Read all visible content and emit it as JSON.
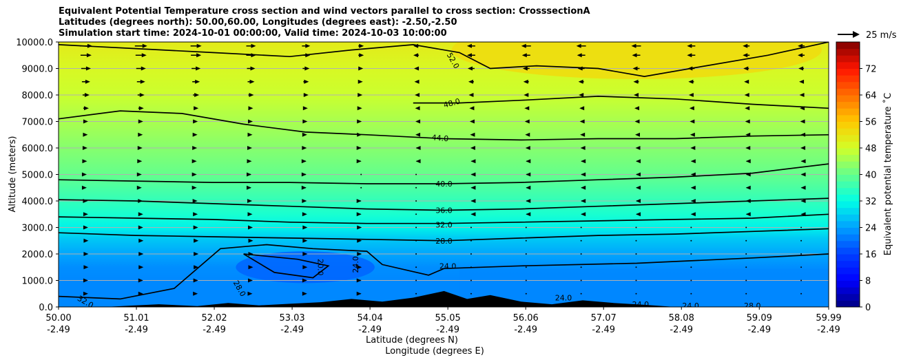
{
  "chart_data": {
    "type": "heatmap",
    "title_lines": [
      "Equivalent Potential Temperature cross section and wind vectors parallel to cross section: CrosssectionA",
      "Latitudes (degrees north): 50.00,60.00, Longitudes (degrees east): -2.50,-2.50",
      "Simulation start time: 2024-10-01 00:00:00, Valid time: 2024-10-03 10:00:00"
    ],
    "xlabel": "Latitude (degrees N)",
    "xlabel2": "Longitude (degrees E)",
    "ylabel": "Altitude (meters)",
    "xlim": [
      50.0,
      59.99
    ],
    "ylim": [
      0,
      10000
    ],
    "x_ticks": [
      {
        "lat": "50.00",
        "lon": "-2.49",
        "value": 50.0
      },
      {
        "lat": "51.01",
        "lon": "-2.49",
        "value": 51.01
      },
      {
        "lat": "52.02",
        "lon": "-2.49",
        "value": 52.02
      },
      {
        "lat": "53.03",
        "lon": "-2.49",
        "value": 53.03
      },
      {
        "lat": "54.04",
        "lon": "-2.49",
        "value": 54.04
      },
      {
        "lat": "55.05",
        "lon": "-2.49",
        "value": 55.05
      },
      {
        "lat": "56.06",
        "lon": "-2.49",
        "value": 56.06
      },
      {
        "lat": "57.07",
        "lon": "-2.49",
        "value": 57.07
      },
      {
        "lat": "58.08",
        "lon": "-2.49",
        "value": 58.08
      },
      {
        "lat": "59.09",
        "lon": "-2.49",
        "value": 59.09
      },
      {
        "lat": "59.99",
        "lon": "-2.49",
        "value": 59.99
      }
    ],
    "y_ticks": [
      {
        "label": "0.0",
        "value": 0
      },
      {
        "label": "1000.0",
        "value": 1000
      },
      {
        "label": "2000.0",
        "value": 2000
      },
      {
        "label": "3000.0",
        "value": 3000
      },
      {
        "label": "4000.0",
        "value": 4000
      },
      {
        "label": "5000.0",
        "value": 5000
      },
      {
        "label": "6000.0",
        "value": 6000
      },
      {
        "label": "7000.0",
        "value": 7000
      },
      {
        "label": "8000.0",
        "value": 8000
      },
      {
        "label": "9000.0",
        "value": 9000
      },
      {
        "label": "10000.0",
        "value": 10000
      }
    ],
    "colorbar": {
      "label": "Equivalent potential temperature ˚C",
      "range": [
        0,
        80
      ],
      "ticks": [
        {
          "label": "0",
          "value": 0
        },
        {
          "label": "8",
          "value": 8
        },
        {
          "label": "16",
          "value": 16
        },
        {
          "label": "24",
          "value": 24
        },
        {
          "label": "32",
          "value": 32
        },
        {
          "label": "40",
          "value": 40
        },
        {
          "label": "48",
          "value": 48
        },
        {
          "label": "56",
          "value": 56
        },
        {
          "label": "64",
          "value": 64
        },
        {
          "label": "72",
          "value": 72
        }
      ]
    },
    "vector_key": "25 m/s",
    "theta_e_levels": [
      {
        "alt": 0,
        "value": 22
      },
      {
        "alt": 1000,
        "value": 22
      },
      {
        "alt": 1500,
        "value": 22.5
      },
      {
        "alt": 2000,
        "value": 24.5
      },
      {
        "alt": 2600,
        "value": 27.5
      },
      {
        "alt": 3000,
        "value": 31
      },
      {
        "alt": 3500,
        "value": 34
      },
      {
        "alt": 4000,
        "value": 36
      },
      {
        "alt": 5000,
        "value": 40
      },
      {
        "alt": 6000,
        "value": 42.5
      },
      {
        "alt": 7000,
        "value": 45
      },
      {
        "alt": 8000,
        "value": 47.5
      },
      {
        "alt": 9000,
        "value": 49
      },
      {
        "alt": 10000,
        "value": 51
      }
    ],
    "contours": [
      {
        "label": "20.0",
        "points": [
          [
            52.4,
            2000
          ],
          [
            53.1,
            1800
          ],
          [
            53.5,
            1550
          ],
          [
            53.3,
            1100
          ],
          [
            52.8,
            1300
          ],
          [
            52.4,
            2000
          ]
        ]
      },
      {
        "label": "24.0",
        "points": [
          [
            50.0,
            400
          ],
          [
            50.8,
            300
          ],
          [
            51.5,
            700
          ],
          [
            52.1,
            2200
          ],
          [
            52.7,
            2350
          ],
          [
            53.3,
            2200
          ],
          [
            54.0,
            2100
          ],
          [
            54.2,
            1600
          ],
          [
            54.8,
            1200
          ],
          [
            55.0,
            1450
          ],
          [
            56.0,
            1550
          ],
          [
            57.5,
            1650
          ],
          [
            59.0,
            1850
          ],
          [
            59.99,
            2000
          ]
        ]
      },
      {
        "label": "28.0",
        "points": [
          [
            50.0,
            2800
          ],
          [
            51.0,
            2700
          ],
          [
            52.0,
            2650
          ],
          [
            53.0,
            2600
          ],
          [
            54.0,
            2550
          ],
          [
            55.0,
            2500
          ],
          [
            56.0,
            2600
          ],
          [
            57.0,
            2700
          ],
          [
            58.0,
            2750
          ],
          [
            59.0,
            2850
          ],
          [
            59.99,
            2950
          ]
        ]
      },
      {
        "label": "32.0",
        "points": [
          [
            50.0,
            3400
          ],
          [
            51.0,
            3350
          ],
          [
            52.0,
            3300
          ],
          [
            53.0,
            3200
          ],
          [
            54.0,
            3150
          ],
          [
            55.0,
            3150
          ],
          [
            56.0,
            3200
          ],
          [
            57.0,
            3250
          ],
          [
            58.0,
            3300
          ],
          [
            59.0,
            3350
          ],
          [
            59.99,
            3500
          ]
        ]
      },
      {
        "label": "36.0",
        "points": [
          [
            50.0,
            4050
          ],
          [
            51.0,
            4000
          ],
          [
            52.0,
            3900
          ],
          [
            53.0,
            3800
          ],
          [
            54.0,
            3700
          ],
          [
            55.0,
            3650
          ],
          [
            56.0,
            3700
          ],
          [
            57.0,
            3800
          ],
          [
            58.0,
            3900
          ],
          [
            59.0,
            4000
          ],
          [
            59.99,
            4100
          ]
        ]
      },
      {
        "label": "40.0",
        "points": [
          [
            50.0,
            4800
          ],
          [
            51.0,
            4750
          ],
          [
            52.0,
            4700
          ],
          [
            53.0,
            4700
          ],
          [
            54.0,
            4650
          ],
          [
            55.0,
            4650
          ],
          [
            56.0,
            4700
          ],
          [
            57.0,
            4800
          ],
          [
            58.0,
            4900
          ],
          [
            59.0,
            5050
          ],
          [
            59.99,
            5400
          ]
        ]
      },
      {
        "label": "44.0",
        "points": [
          [
            50.0,
            7100
          ],
          [
            50.8,
            7400
          ],
          [
            51.6,
            7300
          ],
          [
            52.4,
            6900
          ],
          [
            53.2,
            6600
          ],
          [
            54.0,
            6500
          ],
          [
            55.0,
            6350
          ],
          [
            56.0,
            6300
          ],
          [
            57.0,
            6350
          ],
          [
            58.0,
            6350
          ],
          [
            59.0,
            6450
          ],
          [
            59.99,
            6500
          ]
        ]
      },
      {
        "label": "48.0",
        "points": [
          [
            54.6,
            7700
          ],
          [
            55.2,
            7700
          ],
          [
            56.0,
            7800
          ],
          [
            57.0,
            7950
          ],
          [
            58.0,
            7850
          ],
          [
            59.0,
            7650
          ],
          [
            59.99,
            7500
          ]
        ]
      },
      {
        "label": "52.0",
        "points": [
          [
            50.0,
            9900
          ],
          [
            51.0,
            9750
          ],
          [
            52.0,
            9600
          ],
          [
            53.0,
            9450
          ],
          [
            53.8,
            9700
          ],
          [
            54.6,
            9900
          ],
          [
            55.2,
            9600
          ],
          [
            55.6,
            9000
          ],
          [
            56.2,
            9100
          ],
          [
            57.0,
            9000
          ],
          [
            57.6,
            8700
          ],
          [
            58.4,
            9100
          ],
          [
            59.2,
            9500
          ],
          [
            59.99,
            10000
          ]
        ]
      }
    ],
    "contour_label_positions": [
      {
        "text": "52.0",
        "x": 55.12,
        "y": 9300,
        "rot": 60
      },
      {
        "text": "48.0",
        "x": 55.1,
        "y": 7700,
        "rot": -15
      },
      {
        "text": "44.0",
        "x": 54.95,
        "y": 6380,
        "rot": 5
      },
      {
        "text": "40.0",
        "x": 55.0,
        "y": 4650,
        "rot": 0
      },
      {
        "text": "36.0",
        "x": 55.0,
        "y": 3650,
        "rot": 0
      },
      {
        "text": "32.0",
        "x": 55.0,
        "y": 3100,
        "rot": 0
      },
      {
        "text": "28.0",
        "x": 55.0,
        "y": 2500,
        "rot": 0
      },
      {
        "text": "24.0",
        "x": 55.05,
        "y": 1550,
        "rot": 0
      },
      {
        "text": "24.0",
        "x": 53.85,
        "y": 1600,
        "rot": -90
      },
      {
        "text": "20.0",
        "x": 53.4,
        "y": 1500,
        "rot": 90
      },
      {
        "text": "28.0",
        "x": 52.35,
        "y": 700,
        "rot": 60
      },
      {
        "text": "32.0",
        "x": 50.35,
        "y": 200,
        "rot": 30
      },
      {
        "text": "24.0",
        "x": 56.55,
        "y": 350,
        "rot": 0
      },
      {
        "text": "24.0",
        "x": 57.55,
        "y": 100,
        "rot": 0
      },
      {
        "text": "28.0",
        "x": 59.0,
        "y": 50,
        "rot": 0
      },
      {
        "text": "24.0",
        "x": 58.2,
        "y": 50,
        "rot": 0
      }
    ],
    "terrain": [
      [
        50.0,
        0
      ],
      [
        50.6,
        0
      ],
      [
        51.0,
        60
      ],
      [
        51.3,
        100
      ],
      [
        51.8,
        30
      ],
      [
        52.2,
        150
      ],
      [
        52.6,
        60
      ],
      [
        53.0,
        120
      ],
      [
        53.4,
        180
      ],
      [
        53.8,
        300
      ],
      [
        54.2,
        200
      ],
      [
        54.6,
        350
      ],
      [
        55.0,
        600
      ],
      [
        55.3,
        300
      ],
      [
        55.6,
        450
      ],
      [
        56.0,
        200
      ],
      [
        56.4,
        100
      ],
      [
        56.8,
        250
      ],
      [
        57.2,
        150
      ],
      [
        57.6,
        80
      ],
      [
        58.0,
        0
      ],
      [
        59.99,
        0
      ]
    ],
    "wind_rows": [
      {
        "alt": 9850,
        "u": [
          18,
          18,
          16,
          14,
          12,
          8,
          -8,
          -12,
          -14,
          -14,
          -14,
          -12,
          -10,
          -10
        ]
      },
      {
        "alt": 9500,
        "u": [
          16,
          16,
          15,
          14,
          12,
          8,
          -8,
          -12,
          -12,
          -12,
          -12,
          -12,
          -10,
          -10
        ]
      },
      {
        "alt": 9000,
        "u": [
          14,
          14,
          13,
          12,
          10,
          6,
          -6,
          -10,
          -10,
          -10,
          -10,
          -10,
          -8,
          -8
        ]
      },
      {
        "alt": 8500,
        "u": [
          12,
          12,
          11,
          10,
          8,
          5,
          -5,
          -8,
          -8,
          -8,
          -8,
          -8,
          -6,
          -6
        ]
      },
      {
        "alt": 8000,
        "u": [
          10,
          10,
          9,
          8,
          7,
          4,
          -4,
          -7,
          -7,
          -7,
          -7,
          -7,
          -5,
          -5
        ]
      },
      {
        "alt": 7500,
        "u": [
          8,
          8,
          7,
          6,
          5,
          3,
          -3,
          -5,
          -5,
          -5,
          -5,
          -5,
          -4,
          -4
        ]
      },
      {
        "alt": 7000,
        "u": [
          6,
          6,
          5,
          5,
          4,
          2,
          -2,
          -4,
          -4,
          -4,
          -4,
          -4,
          -3,
          -3
        ]
      },
      {
        "alt": 6500,
        "u": [
          5,
          5,
          4,
          4,
          3,
          2,
          -2,
          -3,
          -3,
          -3,
          -3,
          -3,
          -2,
          -2
        ]
      },
      {
        "alt": 6000,
        "u": [
          4,
          4,
          3,
          3,
          2,
          1,
          -1,
          -2,
          -2,
          -2,
          -2,
          -2,
          -2,
          -2
        ]
      },
      {
        "alt": 5500,
        "u": [
          3,
          3,
          2,
          2,
          1,
          1,
          -1,
          -1,
          -1,
          -1,
          -1,
          -1,
          -1,
          -1
        ]
      },
      {
        "alt": 5000,
        "u": [
          2,
          2,
          2,
          1,
          1,
          0,
          0,
          -1,
          -1,
          -1,
          -1,
          -1,
          -1,
          -1
        ]
      },
      {
        "alt": 4500,
        "u": [
          2,
          2,
          2,
          1,
          1,
          0,
          0,
          -1,
          -1,
          -1,
          -1,
          -1,
          -1,
          -1
        ]
      },
      {
        "alt": 4000,
        "u": [
          5,
          5,
          4,
          3,
          2,
          1,
          0,
          -1,
          -1,
          -1,
          -1,
          -1,
          -1,
          -1
        ]
      },
      {
        "alt": 3500,
        "u": [
          6,
          6,
          5,
          4,
          3,
          1,
          0,
          -1,
          -1,
          -1,
          -1,
          -1,
          -1,
          -1
        ]
      },
      {
        "alt": 3000,
        "u": [
          6,
          6,
          6,
          5,
          4,
          2,
          0,
          0,
          0,
          0,
          0,
          0,
          0,
          0
        ]
      },
      {
        "alt": 2500,
        "u": [
          7,
          7,
          7,
          6,
          4,
          2,
          0,
          0,
          0,
          0,
          0,
          0,
          0,
          0
        ]
      },
      {
        "alt": 2000,
        "u": [
          7,
          7,
          7,
          6,
          4,
          2,
          0,
          0,
          0,
          0,
          0,
          0,
          0,
          0
        ]
      },
      {
        "alt": 1500,
        "u": [
          7,
          7,
          7,
          6,
          4,
          2,
          0,
          0,
          0,
          0,
          0,
          0,
          0,
          0
        ]
      },
      {
        "alt": 1000,
        "u": [
          6,
          6,
          6,
          5,
          3,
          1,
          0,
          0,
          0,
          0,
          0,
          0,
          0,
          0
        ]
      },
      {
        "alt": 500,
        "u": [
          6,
          6,
          5,
          4,
          3,
          1,
          0,
          0,
          0,
          0,
          0,
          0,
          0,
          0
        ]
      }
    ]
  }
}
